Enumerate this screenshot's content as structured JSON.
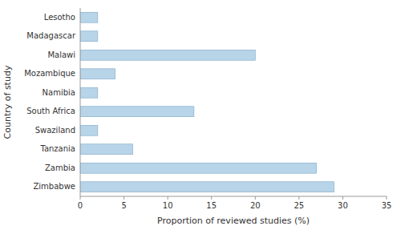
{
  "chart_data": {
    "type": "bar",
    "orientation": "horizontal",
    "categories": [
      "Lesotho",
      "Madagascar",
      "Malawi",
      "Mozambique",
      "Namibia",
      "South Africa",
      "Swaziland",
      "Tanzania",
      "Zambia",
      "Zimbabwe"
    ],
    "values": [
      2.0,
      2.0,
      20.0,
      4.0,
      2.0,
      13.0,
      2.0,
      6.0,
      27.0,
      29.0
    ],
    "color": "#b8d4e8",
    "xlabel": "Proportion of reviewed studies (%)",
    "ylabel": "Country of study",
    "xlim": [
      0,
      35
    ],
    "xticks": [
      0,
      5,
      10,
      15,
      20,
      25,
      30,
      35
    ],
    "grid": false
  }
}
